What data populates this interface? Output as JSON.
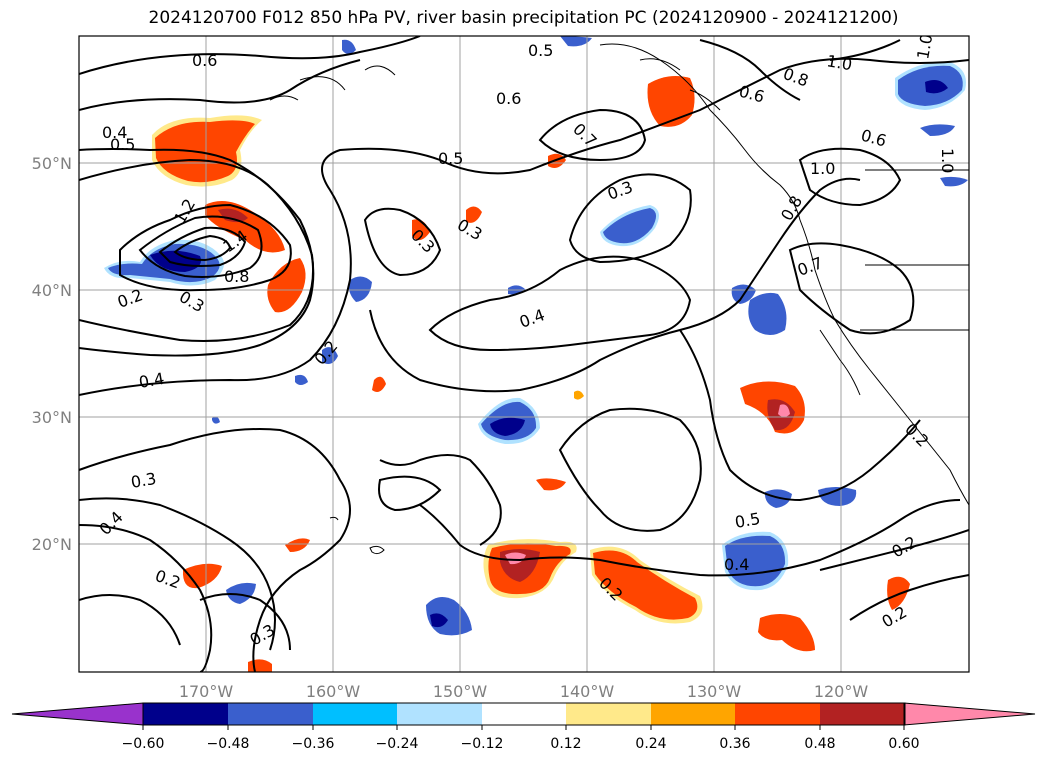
{
  "title": "2024120700 F012 850 hPa PV, river basin precipitation PC (2024120900 - 2024121200)",
  "lat_labels": [
    "50°N",
    "40°N",
    "30°N",
    "20°N"
  ],
  "lon_labels": [
    "170°W",
    "160°W",
    "150°W",
    "140°W",
    "130°W",
    "120°W"
  ],
  "contour_labels": [
    "0.6",
    "0.5",
    "0.6",
    "0.7",
    "0.8",
    "1.0",
    "0.6",
    "0.4",
    "0.5",
    "1.0",
    "0.6",
    "1.2",
    "1.4",
    "0.8",
    "0.3",
    "0.2",
    "0.3",
    "0.5",
    "0.3",
    "0.3",
    "0.8",
    "0.7",
    "0.4",
    "0.2",
    "0.4",
    "0.3",
    "0.4",
    "0.2",
    "0.3",
    "0.5",
    "0.4",
    "0.2",
    "0.2",
    "0.2",
    "1.0",
    "0.2",
    "1.0"
  ],
  "colorbar": {
    "ticks": [
      "−0.60",
      "−0.48",
      "−0.36",
      "−0.24",
      "−0.12",
      "0.12",
      "0.24",
      "0.36",
      "0.48",
      "0.60"
    ],
    "colors": [
      "#9932cc",
      "#00008b",
      "#3a5fcd",
      "#00bfff",
      "#b0e2ff",
      "#ffffff",
      "#ffe98a",
      "#ffa500",
      "#ff4500",
      "#b22222",
      "#ff88aa",
      "#ff88aa"
    ]
  },
  "map_data": {
    "region": "North Pacific, 10°N–60°N, 180°W–110°W",
    "field_contours": "850 hPa PV",
    "field_shaded": "river basin precipitation PC"
  }
}
